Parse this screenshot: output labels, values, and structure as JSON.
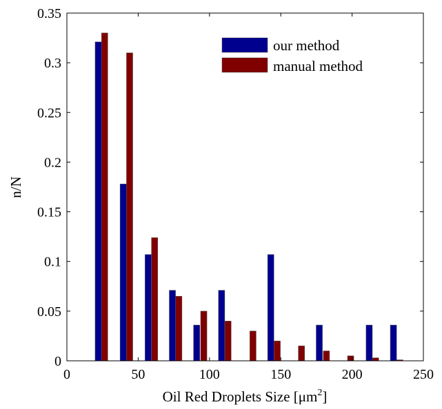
{
  "chart_data": {
    "type": "bar",
    "title": "",
    "xlabel": "Oil Red Droplets Size [μm",
    "xlabel_superscript": "2",
    "xlabel_close": "]",
    "ylabel": "n/N",
    "xlim": [
      0,
      250
    ],
    "ylim": [
      0,
      0.35
    ],
    "x_ticks": [
      0,
      50,
      100,
      150,
      200,
      250
    ],
    "x_tick_labels": [
      "0",
      "50",
      "100",
      "150",
      "200",
      "250"
    ],
    "y_ticks": [
      0,
      0.05,
      0.1,
      0.15,
      0.2,
      0.25,
      0.3,
      0.35
    ],
    "y_tick_labels": [
      "0",
      "0.05",
      "0.1",
      "0.15",
      "0.2",
      "0.25",
      "0.3",
      "0.35"
    ],
    "grid": false,
    "legend_position": "top-right",
    "bar_width": 4.4,
    "series": [
      {
        "name": "our method",
        "color": "#00008f",
        "x": [
          22,
          39.5,
          57,
          74,
          91,
          108.5,
          125.5,
          143,
          160,
          177,
          194.5,
          212,
          229
        ],
        "values": [
          0.321,
          0.178,
          0.107,
          0.071,
          0.036,
          0.071,
          0,
          0.107,
          0,
          0.036,
          0,
          0.036,
          0.036
        ]
      },
      {
        "name": "manual method",
        "color": "#800000",
        "x": [
          26.5,
          44,
          61.5,
          78.5,
          96,
          113,
          130.5,
          147.5,
          164.5,
          182,
          199,
          216.5,
          233.5
        ],
        "values": [
          0.33,
          0.31,
          0.124,
          0.065,
          0.05,
          0.04,
          0.03,
          0.02,
          0.015,
          0.01,
          0.005,
          0.003,
          0.001
        ]
      }
    ]
  }
}
